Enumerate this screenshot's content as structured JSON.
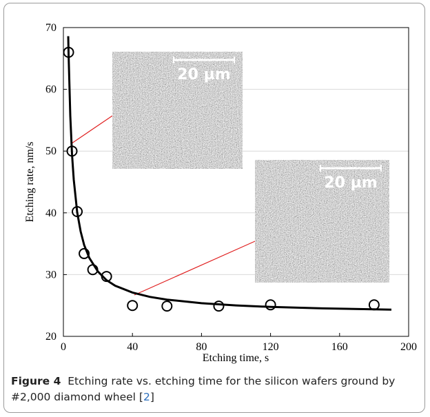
{
  "chart_data": {
    "type": "scatter",
    "xlabel": "Etching time, s",
    "ylabel": "Etching rate, nm/s",
    "xlim": [
      0,
      200
    ],
    "ylim": [
      20,
      70
    ],
    "xticks": [
      0,
      40,
      80,
      120,
      160,
      200
    ],
    "yticks": [
      20,
      30,
      40,
      50,
      60,
      70
    ],
    "grid": true,
    "series": [
      {
        "type": "scatter",
        "color": "#000000",
        "x": [
          3,
          5,
          8,
          12,
          17,
          25,
          40,
          60,
          90,
          120,
          180
        ],
        "values": [
          66,
          50,
          40.2,
          33.4,
          30.8,
          29.7,
          25,
          24.9,
          24.9,
          25.1,
          25.1
        ]
      },
      {
        "type": "line",
        "color": "#000000",
        "x": [
          2.8,
          3,
          4,
          5,
          6,
          8,
          10,
          12,
          15,
          20,
          25,
          30,
          40,
          50,
          60,
          80,
          100,
          120,
          150,
          190
        ],
        "values": [
          68.6,
          65.8,
          55.7,
          49.5,
          45.4,
          40.1,
          37.0,
          34.8,
          32.7,
          30.5,
          29.1,
          28.2,
          27.1,
          26.4,
          25.95,
          25.37,
          25.01,
          24.77,
          24.53,
          24.32
        ]
      }
    ],
    "annotations": [
      "20 µm",
      "20 µm"
    ]
  },
  "caption": {
    "label": "Figure 4",
    "text": "Etching rate vs. etching time for the silicon wafers ground by #2,000 diamond wheel [",
    "ref": "2",
    "end": "]"
  }
}
